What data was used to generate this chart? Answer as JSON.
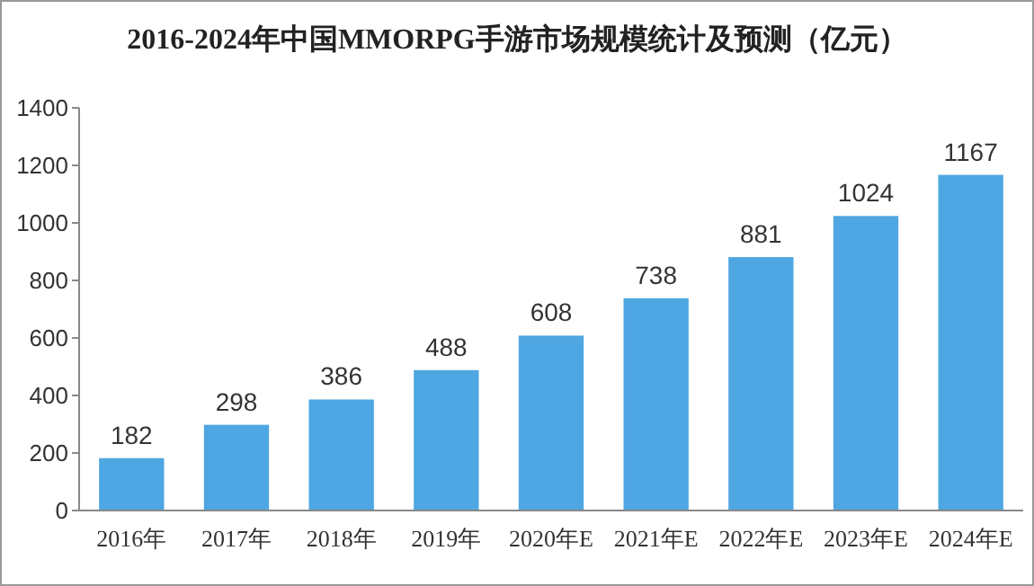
{
  "chart_data": {
    "type": "bar",
    "title": "2016-2024年中国MMORPG手游市场规模统计及预测（亿元）",
    "categories": [
      "2016年",
      "2017年",
      "2018年",
      "2019年",
      "2020年E",
      "2021年E",
      "2022年E",
      "2023年E",
      "2024年E"
    ],
    "values": [
      182,
      298,
      386,
      488,
      608,
      738,
      881,
      1024,
      1167
    ],
    "color": "#4ea6e2",
    "ylim": [
      0,
      1400
    ],
    "yticks": [
      0,
      200,
      400,
      600,
      800,
      1000,
      1200,
      1400
    ],
    "grid": false,
    "data_labels": true
  }
}
